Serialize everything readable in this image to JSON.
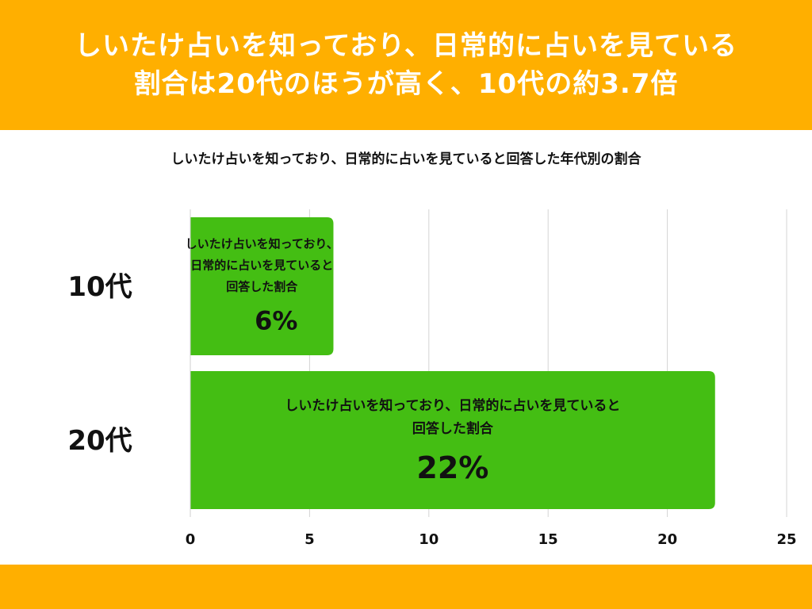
{
  "headline": {
    "line1": "しいたけ占いを知っており、日常的に占いを見ている",
    "line2": "割合は20代のほうが高く、10代の約3.7倍"
  },
  "colors": {
    "band": "#FFAF00",
    "bar": "#44BE13",
    "headline_text": "#FFFFFF"
  },
  "chart_data": {
    "type": "bar",
    "orientation": "horizontal",
    "title": "しいたけ占いを知っており、日常的に占いを見ていると回答した年代別の割合",
    "categories": [
      "10代",
      "20代"
    ],
    "values": [
      6,
      22
    ],
    "value_labels": [
      "6%",
      "22%"
    ],
    "bar_captions": [
      [
        "しいたけ占いを知っており、",
        "日常的に占いを見ていると",
        "回答した割合"
      ],
      [
        "しいたけ占いを知っており、日常的に占いを見ていると",
        "回答した割合"
      ]
    ],
    "xlim": [
      0,
      25
    ],
    "xticks": [
      "0",
      "5",
      "10",
      "15",
      "20",
      "25"
    ],
    "grid": true
  }
}
